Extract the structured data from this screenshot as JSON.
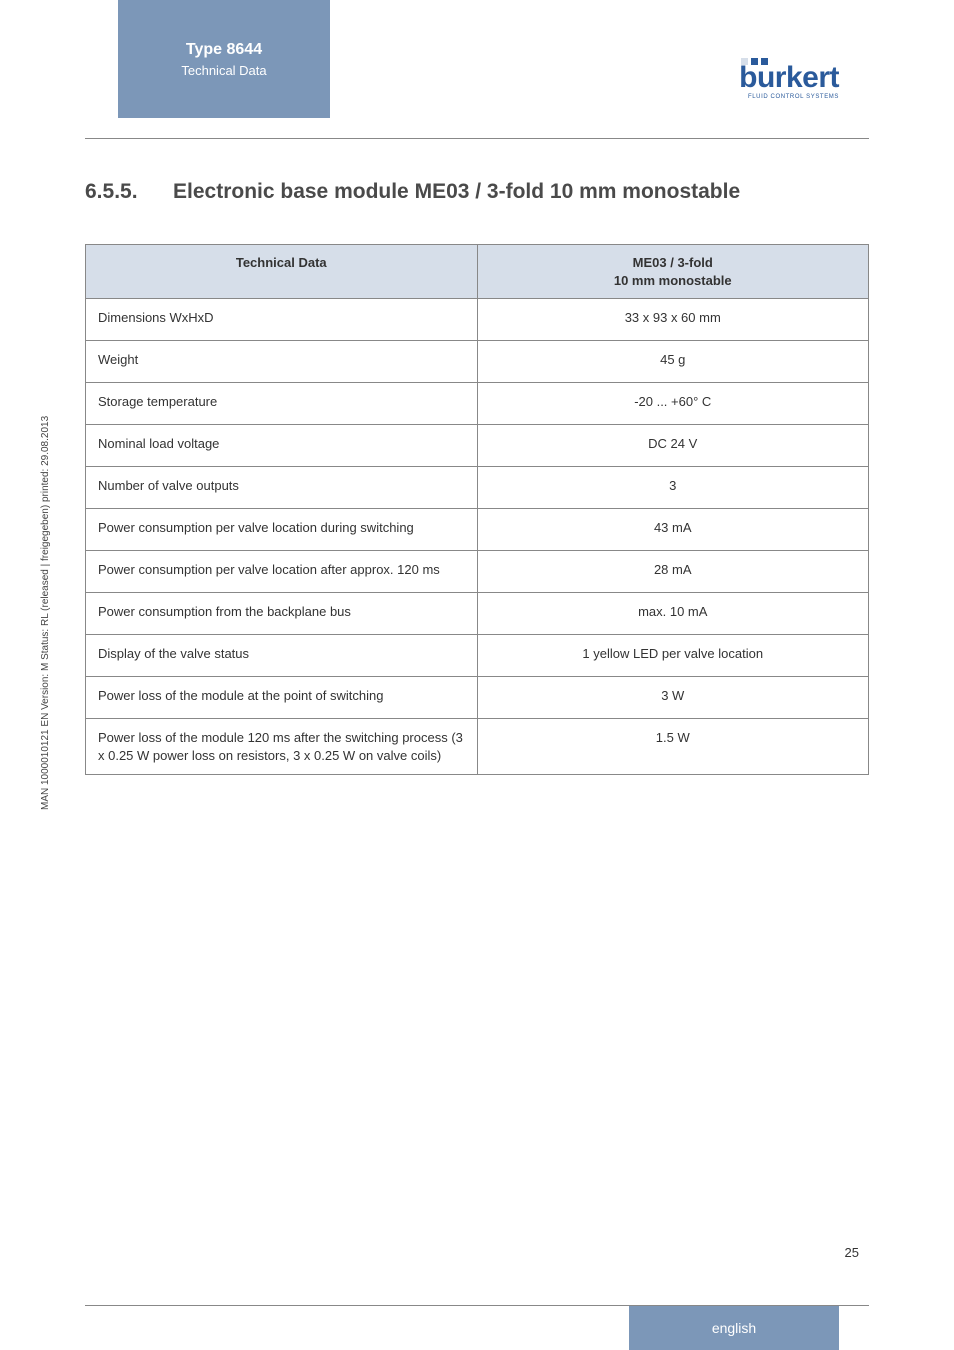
{
  "header": {
    "type_label": "Type 8644",
    "sub_label": "Technical Data",
    "brand": "burkert",
    "tagline": "FLUID CONTROL SYSTEMS",
    "dot_colors": [
      "#d6dee9",
      "#2a5a9b",
      "#2a5a9b"
    ]
  },
  "section": {
    "number": "6.5.5.",
    "title": "Electronic base module ME03 / 3-fold 10 mm monostable"
  },
  "table": {
    "header_left": "Technical Data",
    "header_right_line1": "ME03 / 3-fold",
    "header_right_line2": "10 mm monostable",
    "rows": [
      {
        "label": "Dimensions WxHxD",
        "value": "33 x 93 x 60 mm"
      },
      {
        "label": "Weight",
        "value": "45 g"
      },
      {
        "label": "Storage temperature",
        "value": "-20 ... +60° C"
      },
      {
        "label": "Nominal load voltage",
        "value": "DC 24 V"
      },
      {
        "label": "Number of valve outputs",
        "value": "3"
      },
      {
        "label": "Power consumption per valve location during switching",
        "value": "43 mA"
      },
      {
        "label": "Power consumption per valve location after approx. 120 ms",
        "value": "28 mA"
      },
      {
        "label": "Power consumption from the backplane bus",
        "value": "max. 10 mA"
      },
      {
        "label": "Display of the valve status",
        "value": "1 yellow LED per valve location"
      },
      {
        "label": "Power loss of the module at the point of switching",
        "value": "3 W"
      },
      {
        "label": "Power loss of the module 120 ms after the switching process (3 x 0.25 W power loss on resistors, 3 x 0.25 W on valve coils)",
        "value": "1.5 W"
      }
    ]
  },
  "side_text": "MAN  1000010121  EN  Version: M  Status: RL (released | freigegeben)  printed: 29.08.2013",
  "page_number": "25",
  "footer_lang": "english",
  "colors": {
    "blue_tab": "#7c97b8",
    "table_header_bg": "#d6dee9",
    "border": "#888888",
    "brand_blue": "#2a5a9b"
  }
}
